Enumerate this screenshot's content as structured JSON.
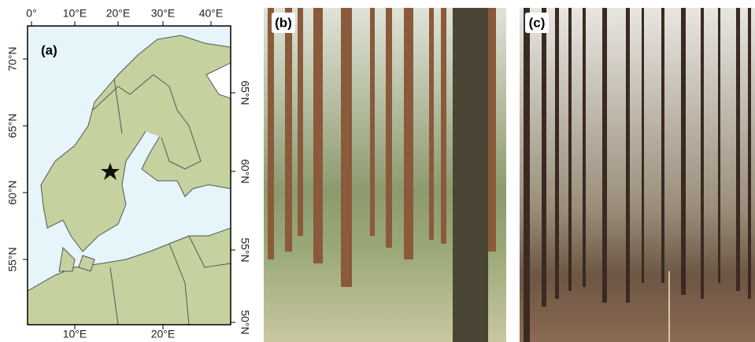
{
  "map": {
    "panel_label": "(a)",
    "top_ticks": [
      "0°",
      "10°E",
      "20°E",
      "30°E",
      "40°E"
    ],
    "bottom_ticks": [
      "10°E",
      "20°E"
    ],
    "left_ticks": [
      "70°N",
      "65°N",
      "60°N",
      "55°N"
    ],
    "right_ticks": [
      "65°N",
      "60°N",
      "55°N",
      "50°N"
    ]
  },
  "photos": [
    {
      "panel_label": "(b)"
    },
    {
      "panel_label": "(c)"
    }
  ]
}
